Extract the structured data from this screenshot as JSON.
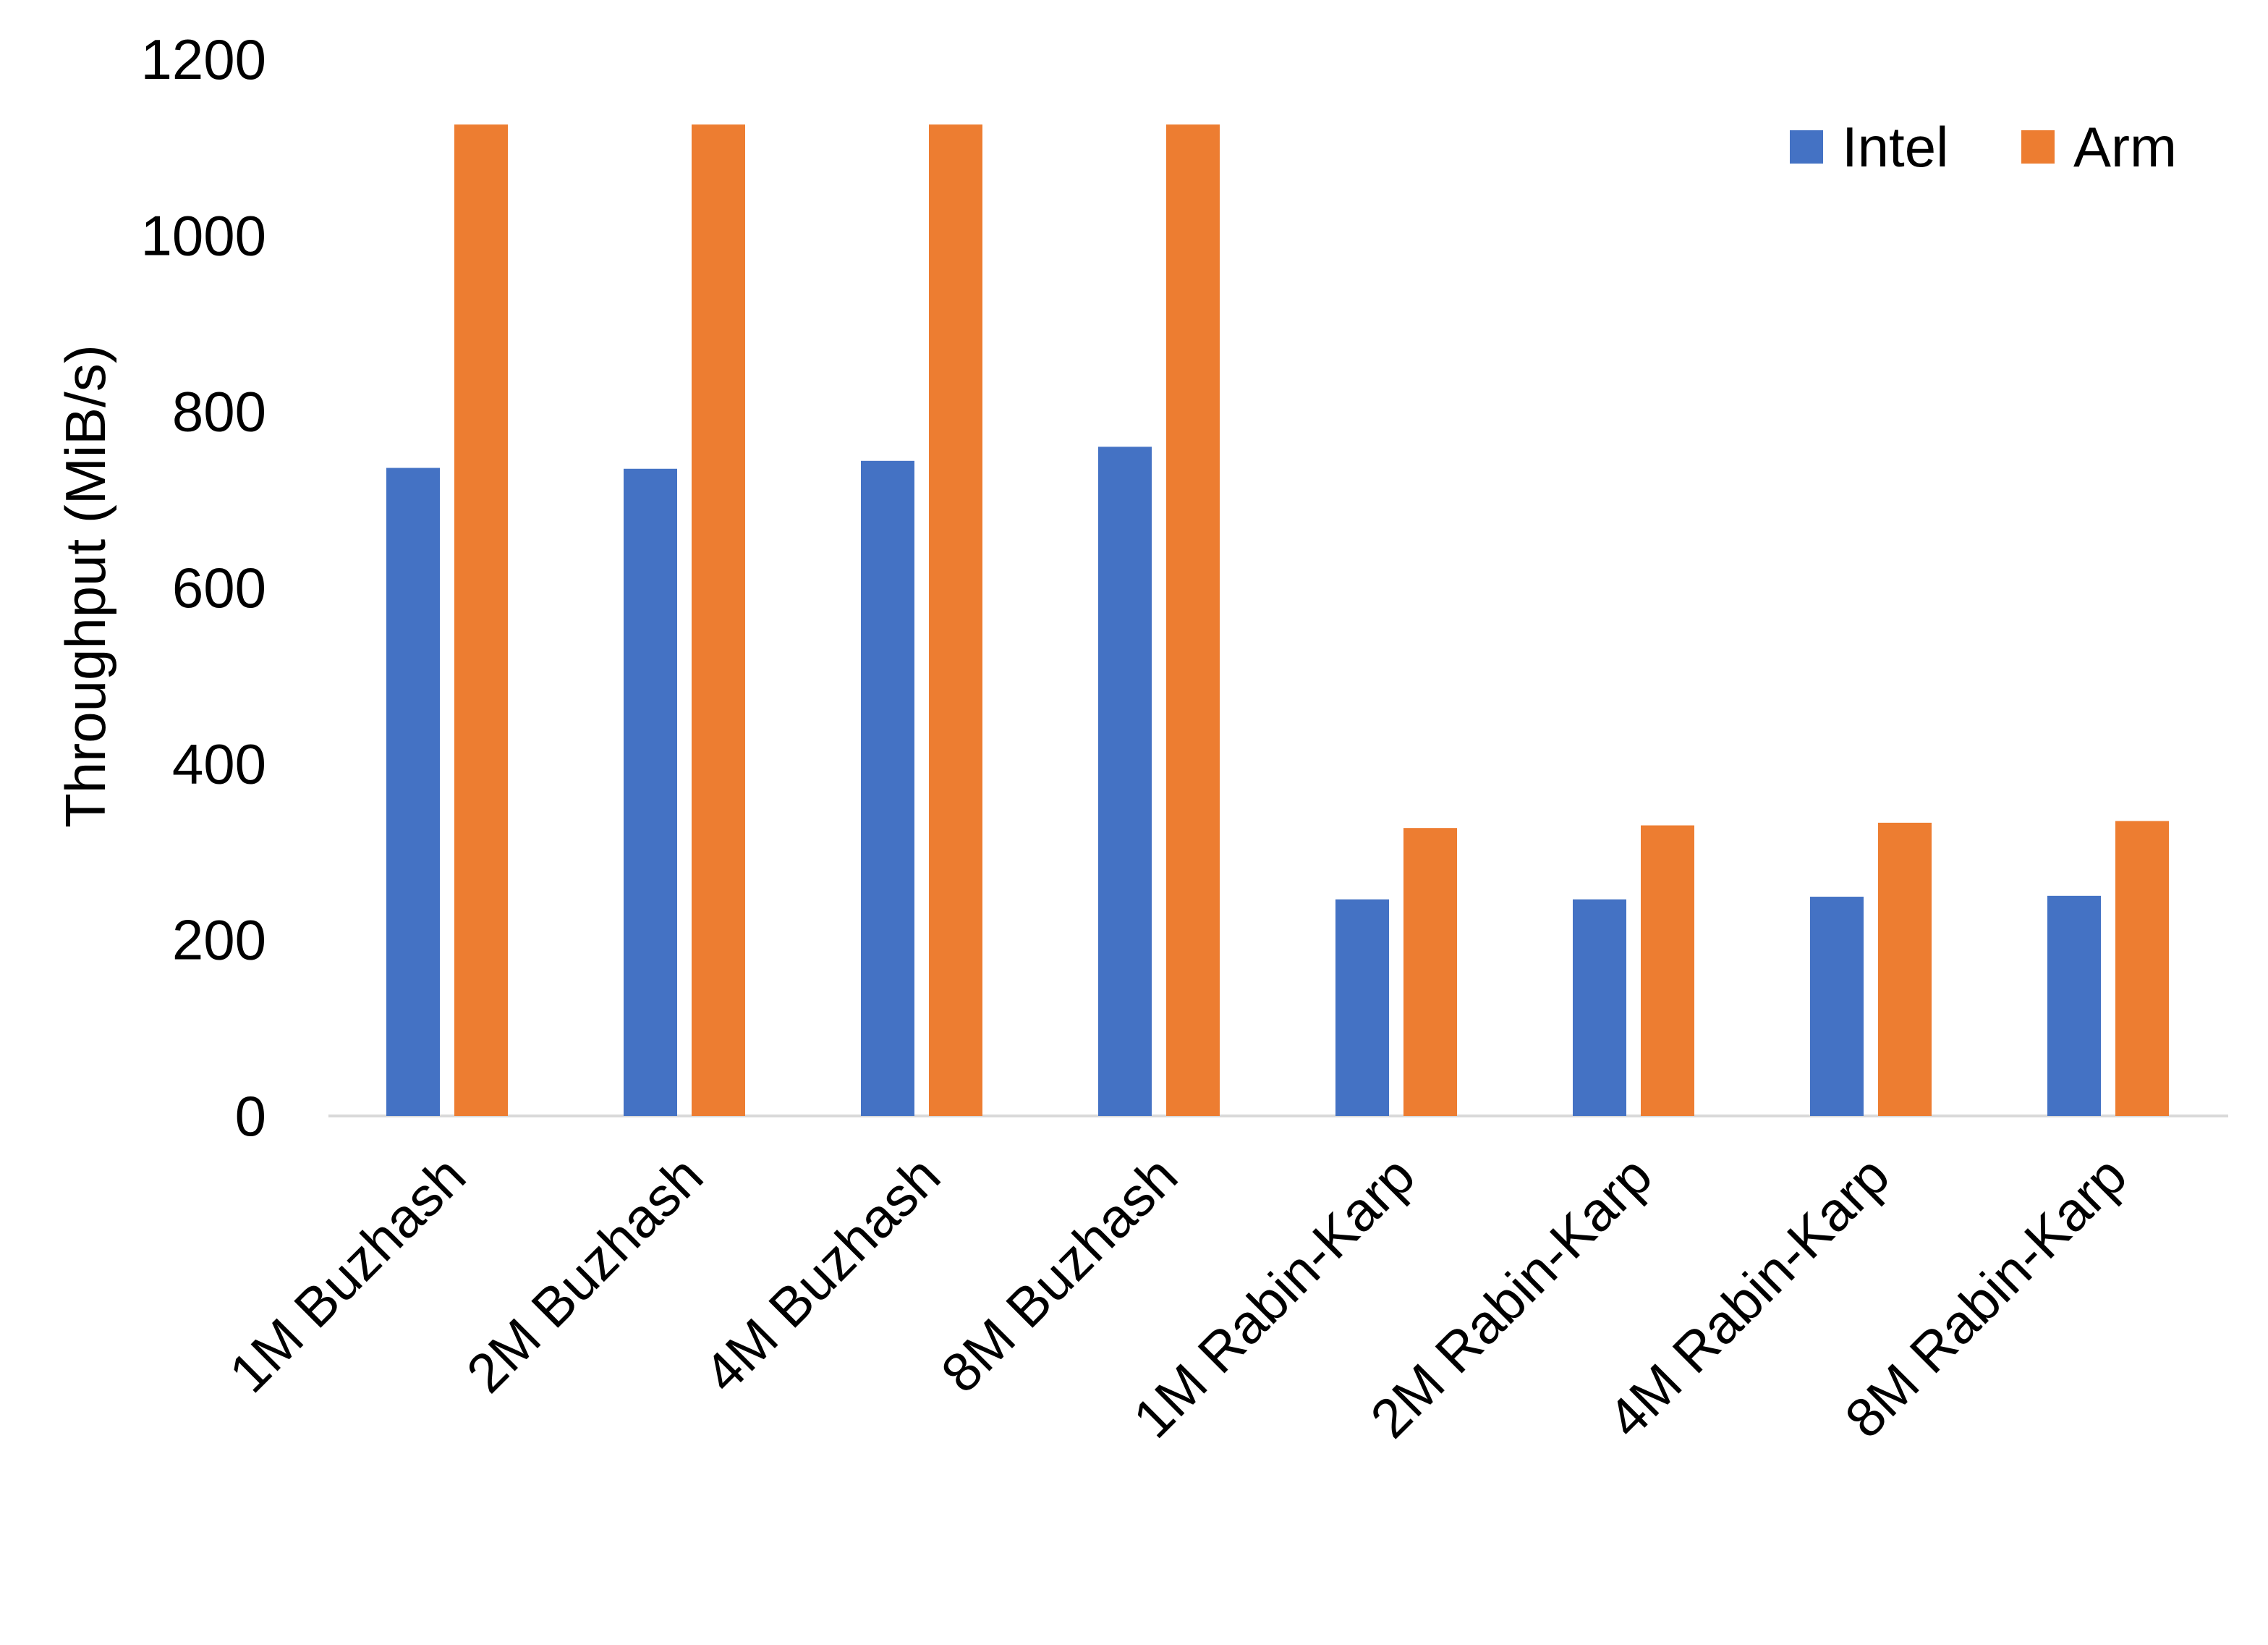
{
  "chart_data": {
    "type": "bar",
    "title": "",
    "xlabel": "",
    "ylabel": "Throughput (MiB/s)",
    "ylim": [
      0,
      1200
    ],
    "yticks": [
      0,
      200,
      400,
      600,
      800,
      1000,
      1200
    ],
    "grid": false,
    "legend_position": "top-right",
    "categories": [
      "1M Buzhash",
      "2M Buzhash",
      "4M Buzhash",
      "8M Buzhash",
      "1M Rabin-Karp",
      "2M Rabin-Karp",
      "4M Rabin-Karp",
      "8M Rabin-Karp"
    ],
    "series": [
      {
        "name": "Intel",
        "color": "#4472C4",
        "values": [
          736,
          735,
          744,
          760,
          246,
          246,
          249,
          250
        ]
      },
      {
        "name": "Arm",
        "color": "#ED7D31",
        "values": [
          1126,
          1126,
          1126,
          1126,
          327,
          330,
          333,
          335
        ]
      }
    ]
  }
}
